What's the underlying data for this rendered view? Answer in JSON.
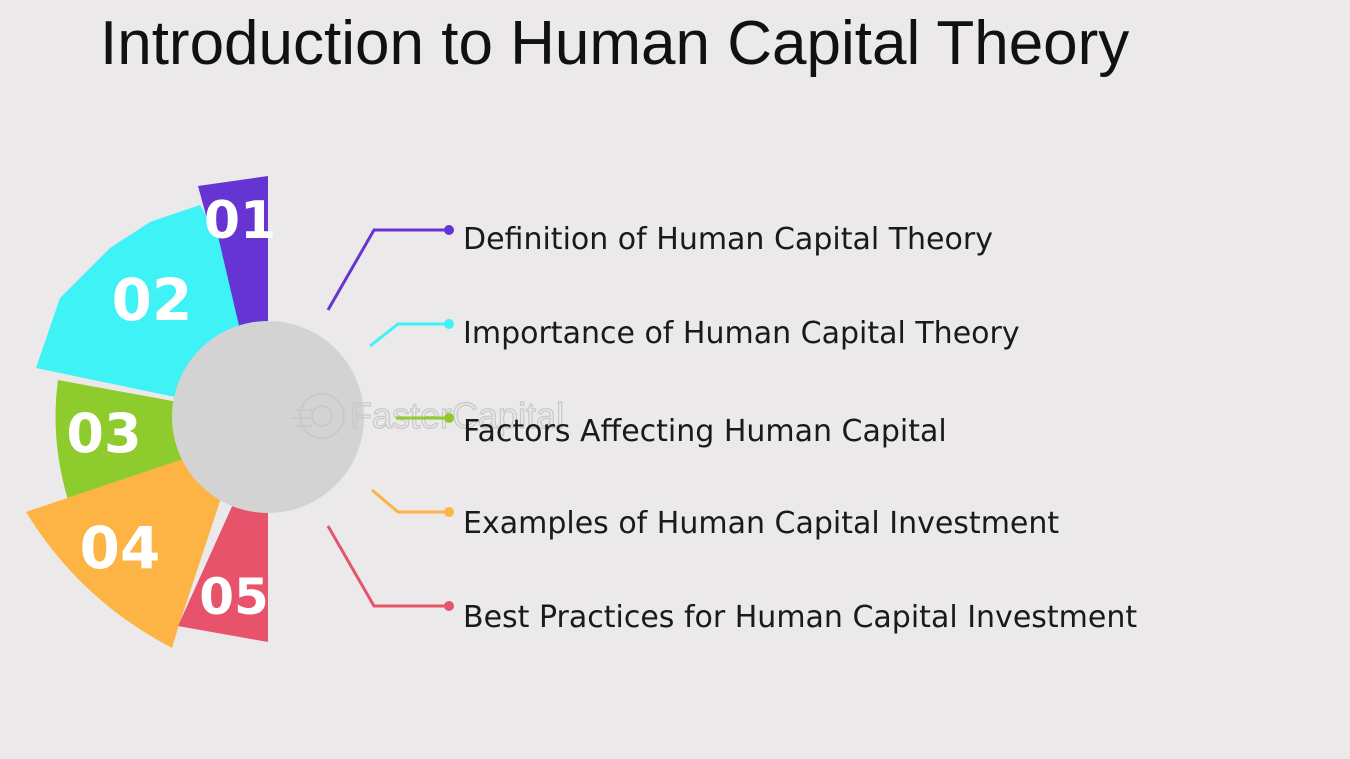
{
  "title": "Introduction to Human Capital Theory",
  "watermark": "FasterCapital",
  "segments": [
    {
      "number": "01",
      "color": "#6734d4",
      "label": "Definition of Human Capital Theory"
    },
    {
      "number": "02",
      "color": "#3ef2f6",
      "label": "Importance of Human Capital Theory"
    },
    {
      "number": "03",
      "color": "#8ecc2e",
      "label": "Factors Affecting Human Capital"
    },
    {
      "number": "04",
      "color": "#fdb444",
      "label": "Examples of Human Capital Investment"
    },
    {
      "number": "05",
      "color": "#e7536b",
      "label": "Best Practices for Human Capital Investment"
    }
  ],
  "hub_color": "#d3d3d3"
}
